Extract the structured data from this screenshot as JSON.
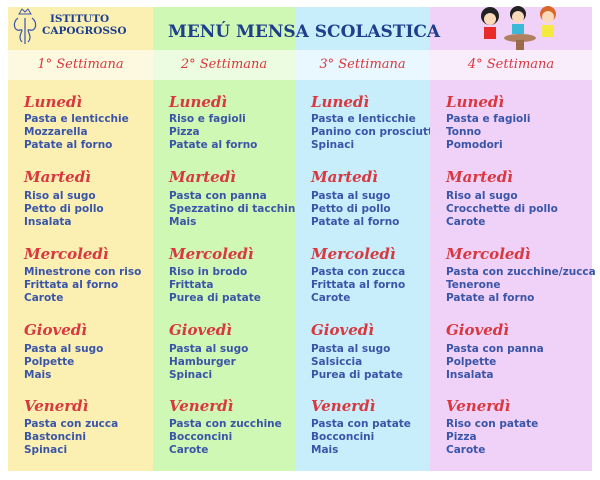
{
  "header": {
    "school_line1": "ISTITUTO",
    "school_line2": "CAPOGROSSO",
    "title": "MENÚ MENSA SCOLASTICA"
  },
  "colors": {
    "text": "#3a55a8",
    "day": "#d8383f",
    "title": "#1e3f8c"
  },
  "weeks": [
    {
      "label": "1° Settimana",
      "days": [
        {
          "name": "Lunedì",
          "items": [
            "Pasta e lenticchie",
            "Mozzarella",
            "Patate al forno"
          ]
        },
        {
          "name": "Martedì",
          "items": [
            "Riso al sugo",
            "Petto di pollo",
            "Insalata"
          ]
        },
        {
          "name": "Mercoledì",
          "items": [
            "Minestrone con riso",
            "Frittata al forno",
            "Carote"
          ]
        },
        {
          "name": "Giovedì",
          "items": [
            "Pasta al sugo",
            "Polpette",
            "Mais"
          ]
        },
        {
          "name": "Venerdì",
          "items": [
            "Pasta con zucca",
            "Bastoncini",
            "Spinaci"
          ]
        }
      ]
    },
    {
      "label": "2° Settimana",
      "days": [
        {
          "name": "Lunedì",
          "items": [
            "Riso e fagioli",
            "Pizza",
            "Patate al forno"
          ]
        },
        {
          "name": "Martedì",
          "items": [
            "Pasta con panna",
            "Spezzatino di tacchino",
            "Mais"
          ]
        },
        {
          "name": "Mercoledì",
          "items": [
            "Riso in brodo",
            "Frittata",
            "Purea di patate"
          ]
        },
        {
          "name": "Giovedì",
          "items": [
            "Pasta al sugo",
            "Hamburger",
            "Spinaci"
          ]
        },
        {
          "name": "Venerdì",
          "items": [
            "Pasta con zucchine",
            "Bocconcini",
            "Carote"
          ]
        }
      ]
    },
    {
      "label": "3° Settimana",
      "days": [
        {
          "name": "Lunedì",
          "items": [
            "Pasta e lenticchie",
            "Panino con prosciutto",
            "Spinaci"
          ]
        },
        {
          "name": "Martedì",
          "items": [
            "Pasta al sugo",
            "Petto di pollo",
            "Patate al forno"
          ]
        },
        {
          "name": "Mercoledì",
          "items": [
            "Pasta con zucca",
            "Frittata al forno",
            "Carote"
          ]
        },
        {
          "name": "Giovedì",
          "items": [
            "Pasta al sugo",
            "Salsiccia",
            "Purea di patate"
          ]
        },
        {
          "name": "Venerdì",
          "items": [
            "Pasta con patate",
            "Bocconcini",
            "Mais"
          ]
        }
      ]
    },
    {
      "label": "4° Settimana",
      "days": [
        {
          "name": "Lunedì",
          "items": [
            "Pasta e fagioli",
            "Tonno",
            "Pomodori"
          ]
        },
        {
          "name": "Martedì",
          "items": [
            "Riso al sugo",
            "Crocchette di pollo",
            "Carote"
          ]
        },
        {
          "name": "Mercoledì",
          "items": [
            "Pasta con zucchine/zucca",
            "Tenerone",
            "Patate al forno"
          ]
        },
        {
          "name": "Giovedì",
          "items": [
            "Pasta con panna",
            "Polpette",
            "Insalata"
          ]
        },
        {
          "name": "Venerdì",
          "items": [
            "Riso con patate",
            "Pizza",
            "Carote"
          ]
        }
      ]
    }
  ]
}
